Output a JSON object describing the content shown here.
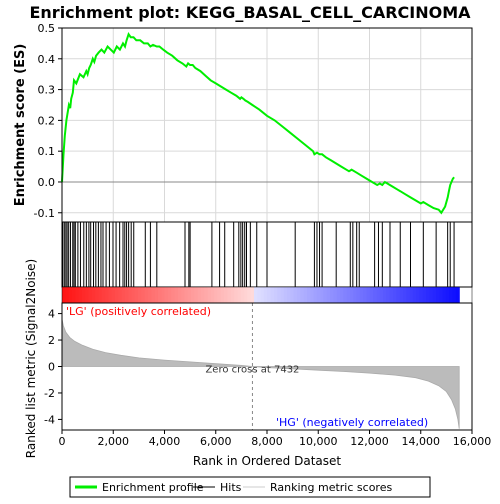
{
  "chart_data": {
    "type": "line",
    "title": "Enrichment plot: KEGG_BASAL_CELL_CARCINOMA",
    "colors": {
      "es_line": "#00ee00",
      "hits": "#000000",
      "metric_fill": "#bbbbbb",
      "pos_label": "#ff0000",
      "neg_label": "#0000ff",
      "zero_line": "#888888"
    },
    "top_panel": {
      "ylabel": "Enrichment score (ES)",
      "ylim": [
        -0.13,
        0.5
      ],
      "yticks": [
        0.5,
        0.4,
        0.3,
        0.2,
        0.1,
        0.0,
        -0.1
      ],
      "ytick_labels": [
        "0.5",
        "0.4",
        "0.3",
        "0.2",
        "0.1",
        "0.0",
        "-0.1"
      ],
      "grid": true,
      "series": [
        {
          "name": "Enrichment profile",
          "x": [
            0,
            60,
            110,
            170,
            210,
            270,
            320,
            360,
            420,
            470,
            560,
            700,
            840,
            950,
            1000,
            1060,
            1120,
            1200,
            1260,
            1330,
            1430,
            1540,
            1650,
            1780,
            1900,
            2020,
            2140,
            2260,
            2380,
            2460,
            2520,
            2600,
            2680,
            2790,
            2900,
            3050,
            3200,
            3350,
            3450,
            3550,
            3700,
            3800,
            3950,
            4100,
            4300,
            4500,
            4700,
            4850,
            4920,
            5000,
            5100,
            5200,
            5400,
            5600,
            5800,
            6000,
            6200,
            6400,
            6600,
            6800,
            6950,
            7000,
            7080,
            7150,
            7250,
            7430,
            7700,
            8000,
            8300,
            8600,
            8900,
            9200,
            9500,
            9800,
            9850,
            9950,
            10050,
            10150,
            10300,
            10500,
            10700,
            10900,
            11100,
            11200,
            11300,
            11500,
            11700,
            11900,
            12100,
            12300,
            12400,
            12500,
            12600,
            12700,
            12900,
            13100,
            13200,
            13400,
            13600,
            13800,
            14000,
            14100,
            14300,
            14500,
            14700,
            14800,
            14950,
            15050,
            15100,
            15150,
            15250,
            15300
          ],
          "y": [
            0.0,
            0.09,
            0.15,
            0.2,
            0.22,
            0.25,
            0.24,
            0.27,
            0.29,
            0.33,
            0.32,
            0.35,
            0.34,
            0.36,
            0.35,
            0.37,
            0.38,
            0.4,
            0.39,
            0.41,
            0.42,
            0.43,
            0.42,
            0.44,
            0.43,
            0.42,
            0.44,
            0.43,
            0.45,
            0.44,
            0.46,
            0.48,
            0.47,
            0.47,
            0.46,
            0.46,
            0.45,
            0.45,
            0.44,
            0.445,
            0.44,
            0.44,
            0.43,
            0.42,
            0.41,
            0.395,
            0.385,
            0.375,
            0.385,
            0.38,
            0.38,
            0.37,
            0.36,
            0.345,
            0.33,
            0.32,
            0.31,
            0.3,
            0.29,
            0.28,
            0.27,
            0.275,
            0.27,
            0.265,
            0.26,
            0.25,
            0.235,
            0.215,
            0.2,
            0.18,
            0.16,
            0.14,
            0.12,
            0.1,
            0.09,
            0.095,
            0.09,
            0.09,
            0.08,
            0.07,
            0.06,
            0.05,
            0.04,
            0.035,
            0.04,
            0.03,
            0.02,
            0.01,
            0.0,
            -0.01,
            -0.005,
            -0.01,
            -0.0,
            -0.005,
            -0.015,
            -0.025,
            -0.03,
            -0.04,
            -0.05,
            -0.06,
            -0.07,
            -0.065,
            -0.075,
            -0.085,
            -0.09,
            -0.1,
            -0.08,
            -0.05,
            -0.03,
            -0.01,
            0.01,
            0.015
          ]
        }
      ],
      "hits": [
        30,
        90,
        150,
        200,
        260,
        330,
        420,
        470,
        520,
        620,
        720,
        850,
        950,
        1050,
        1120,
        1230,
        1320,
        1420,
        1520,
        1600,
        1720,
        1850,
        1990,
        2110,
        2250,
        2380,
        2450,
        2520,
        2600,
        2700,
        2800,
        3250,
        3450,
        3700,
        4800,
        4950,
        5000,
        5850,
        6150,
        6350,
        6700,
        6900,
        6980,
        7050,
        7130,
        7200,
        7350,
        7600,
        8000,
        9100,
        9850,
        9950,
        10050,
        10150,
        10700,
        11250,
        11350,
        11500,
        11600,
        12200,
        12350,
        12500,
        12800,
        13200,
        13600,
        14100,
        14600,
        15050,
        15150,
        15300
      ]
    },
    "metric_panel": {
      "ylabel": "Ranked list metric (Signal2Noise)",
      "xlabel": "Rank in Ordered Dataset",
      "xlim": [
        0,
        16000
      ],
      "xticks": [
        0,
        2000,
        4000,
        6000,
        8000,
        10000,
        12000,
        14000,
        16000
      ],
      "xtick_labels": [
        "0",
        "2,000",
        "4,000",
        "6,000",
        "8,000",
        "10,000",
        "12,000",
        "14,000",
        "16,000"
      ],
      "ylim": [
        -4.8,
        4.8
      ],
      "yticks": [
        4,
        2,
        0,
        -2,
        -4
      ],
      "ytick_labels": [
        "4",
        "2",
        "0",
        "-2",
        "-4"
      ],
      "metric_x": [
        0,
        50,
        150,
        300,
        500,
        800,
        1200,
        1700,
        2300,
        3000,
        4000,
        5000,
        6000,
        7000,
        7432,
        8000,
        9000,
        10000,
        11000,
        12000,
        13000,
        13800,
        14300,
        14700,
        15000,
        15200,
        15350,
        15450,
        15500
      ],
      "metric_y": [
        3.6,
        3.1,
        2.6,
        2.2,
        1.9,
        1.6,
        1.3,
        1.05,
        0.85,
        0.65,
        0.48,
        0.35,
        0.22,
        0.08,
        0.0,
        -0.08,
        -0.18,
        -0.28,
        -0.38,
        -0.5,
        -0.65,
        -0.85,
        -1.1,
        -1.45,
        -1.9,
        -2.5,
        -3.2,
        -4.0,
        -4.7
      ],
      "zero_cross_label": "Zero cross at 7432",
      "zero_cross_x": 7432,
      "pos_label": "'LG' (positively correlated)",
      "neg_label": "'HG' (negatively correlated)"
    },
    "legend": {
      "placement": "bottom",
      "items": [
        {
          "label": "Enrichment profile",
          "style": "green-line"
        },
        {
          "label": "Hits",
          "style": "black-line"
        },
        {
          "label": "Ranking metric scores",
          "style": "gray-line"
        }
      ]
    }
  }
}
